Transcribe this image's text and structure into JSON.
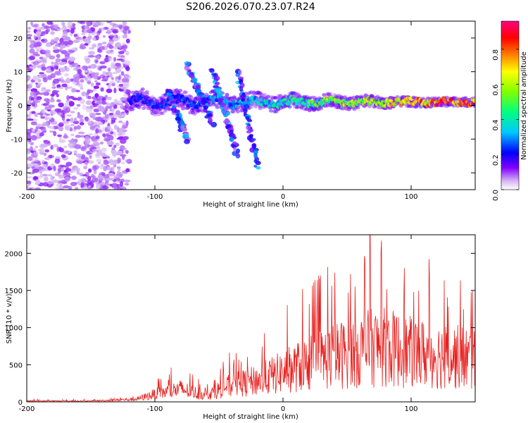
{
  "title": "S206.2026.070.23.07.R24",
  "chart_data": [
    {
      "type": "heatmap",
      "xlabel": "Height of straight line (km)",
      "ylabel": "Frequency (Hz)",
      "xlim": [
        -200,
        150
      ],
      "ylim": [
        -25,
        25
      ],
      "xticks": [
        -200,
        -100,
        0,
        100
      ],
      "xtick_labels": [
        "-200",
        "-100",
        "0",
        "100"
      ],
      "yticks": [
        -20,
        -10,
        0,
        10,
        20
      ],
      "ytick_labels": [
        "-20",
        "-10",
        "0",
        "10",
        "20"
      ],
      "colorbar": {
        "label": "Normalized spectral amplitude",
        "range": [
          0,
          0.96
        ],
        "ticks": [
          0.0,
          0.2,
          0.4,
          0.6,
          0.8
        ],
        "tick_labels": [
          "0.0",
          "0.2",
          "0.4",
          "0.6",
          "0.8"
        ],
        "colormap": [
          "#ffffff",
          "#c8a0f0",
          "#8000ff",
          "#0000ff",
          "#00c8ff",
          "#00ff80",
          "#80ff00",
          "#ffff00",
          "#ff8000",
          "#ff0000",
          "#ff0080"
        ]
      },
      "features": [
        {
          "name": "broadband noise",
          "x_range": [
            -200,
            -120
          ],
          "freq_range": [
            -25,
            25
          ],
          "amplitude": 0.15
        },
        {
          "name": "main echo trail",
          "x_range": [
            -120,
            150
          ],
          "freq_center": 1,
          "amplitude_start": 0.3,
          "amplitude_end": 0.95
        },
        {
          "name": "diagonal streak 1",
          "from": [
            -90,
            5
          ],
          "to": [
            -75,
            -10
          ]
        },
        {
          "name": "diagonal streak 2",
          "from": [
            -75,
            12
          ],
          "to": [
            -55,
            -5
          ]
        },
        {
          "name": "diagonal streak 3",
          "from": [
            -55,
            10
          ],
          "to": [
            -35,
            -15
          ]
        },
        {
          "name": "diagonal streak 4",
          "from": [
            -35,
            10
          ],
          "to": [
            -20,
            -18
          ]
        }
      ]
    },
    {
      "type": "line",
      "xlabel": "Height of straight line (km)",
      "ylabel": "SNR (10 * v/v)",
      "xlim": [
        -200,
        150
      ],
      "ylim": [
        0,
        2250
      ],
      "xticks": [
        -200,
        -100,
        0,
        100
      ],
      "xtick_labels": [
        "-200",
        "-100",
        "0",
        "100"
      ],
      "yticks": [
        0,
        500,
        1000,
        1500,
        2000
      ],
      "ytick_labels": [
        "0",
        "500",
        "1000",
        "1500",
        "2000"
      ],
      "color": "#e8201e",
      "envelope": [
        {
          "x": -200,
          "y": 20
        },
        {
          "x": -150,
          "y": 20
        },
        {
          "x": -115,
          "y": 60
        },
        {
          "x": -100,
          "y": 180
        },
        {
          "x": -80,
          "y": 300
        },
        {
          "x": -60,
          "y": 150
        },
        {
          "x": -45,
          "y": 350
        },
        {
          "x": -20,
          "y": 500
        },
        {
          "x": -5,
          "y": 650
        },
        {
          "x": 10,
          "y": 800
        },
        {
          "x": 30,
          "y": 1000
        },
        {
          "x": 60,
          "y": 1200
        },
        {
          "x": 75,
          "y": 1300
        },
        {
          "x": 100,
          "y": 1150
        },
        {
          "x": 150,
          "y": 1000
        }
      ],
      "peak": {
        "x": 68,
        "y": 2250
      }
    }
  ]
}
